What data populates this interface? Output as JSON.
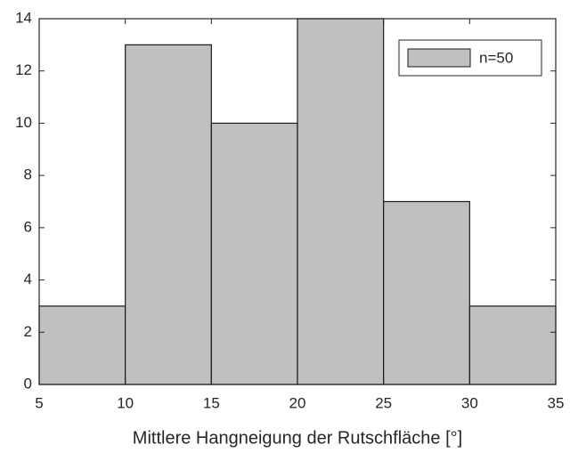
{
  "chart_data": {
    "type": "histogram",
    "xlabel": "Mittlere Hangneigung der Rutschfläche [°]",
    "bins": [
      5,
      10,
      15,
      20,
      25,
      30,
      35
    ],
    "series": [
      {
        "name": "n=50",
        "color": "#c0c0c0",
        "values": [
          3,
          13,
          10,
          14,
          7,
          3
        ]
      }
    ],
    "xlim": [
      5,
      35
    ],
    "xticks": [
      5,
      10,
      15,
      20,
      25,
      30,
      35
    ],
    "ylim": [
      0,
      14
    ],
    "yticks": [
      0,
      2,
      4,
      6,
      8,
      10,
      12,
      14
    ],
    "legend": "upper right",
    "grid": false
  }
}
